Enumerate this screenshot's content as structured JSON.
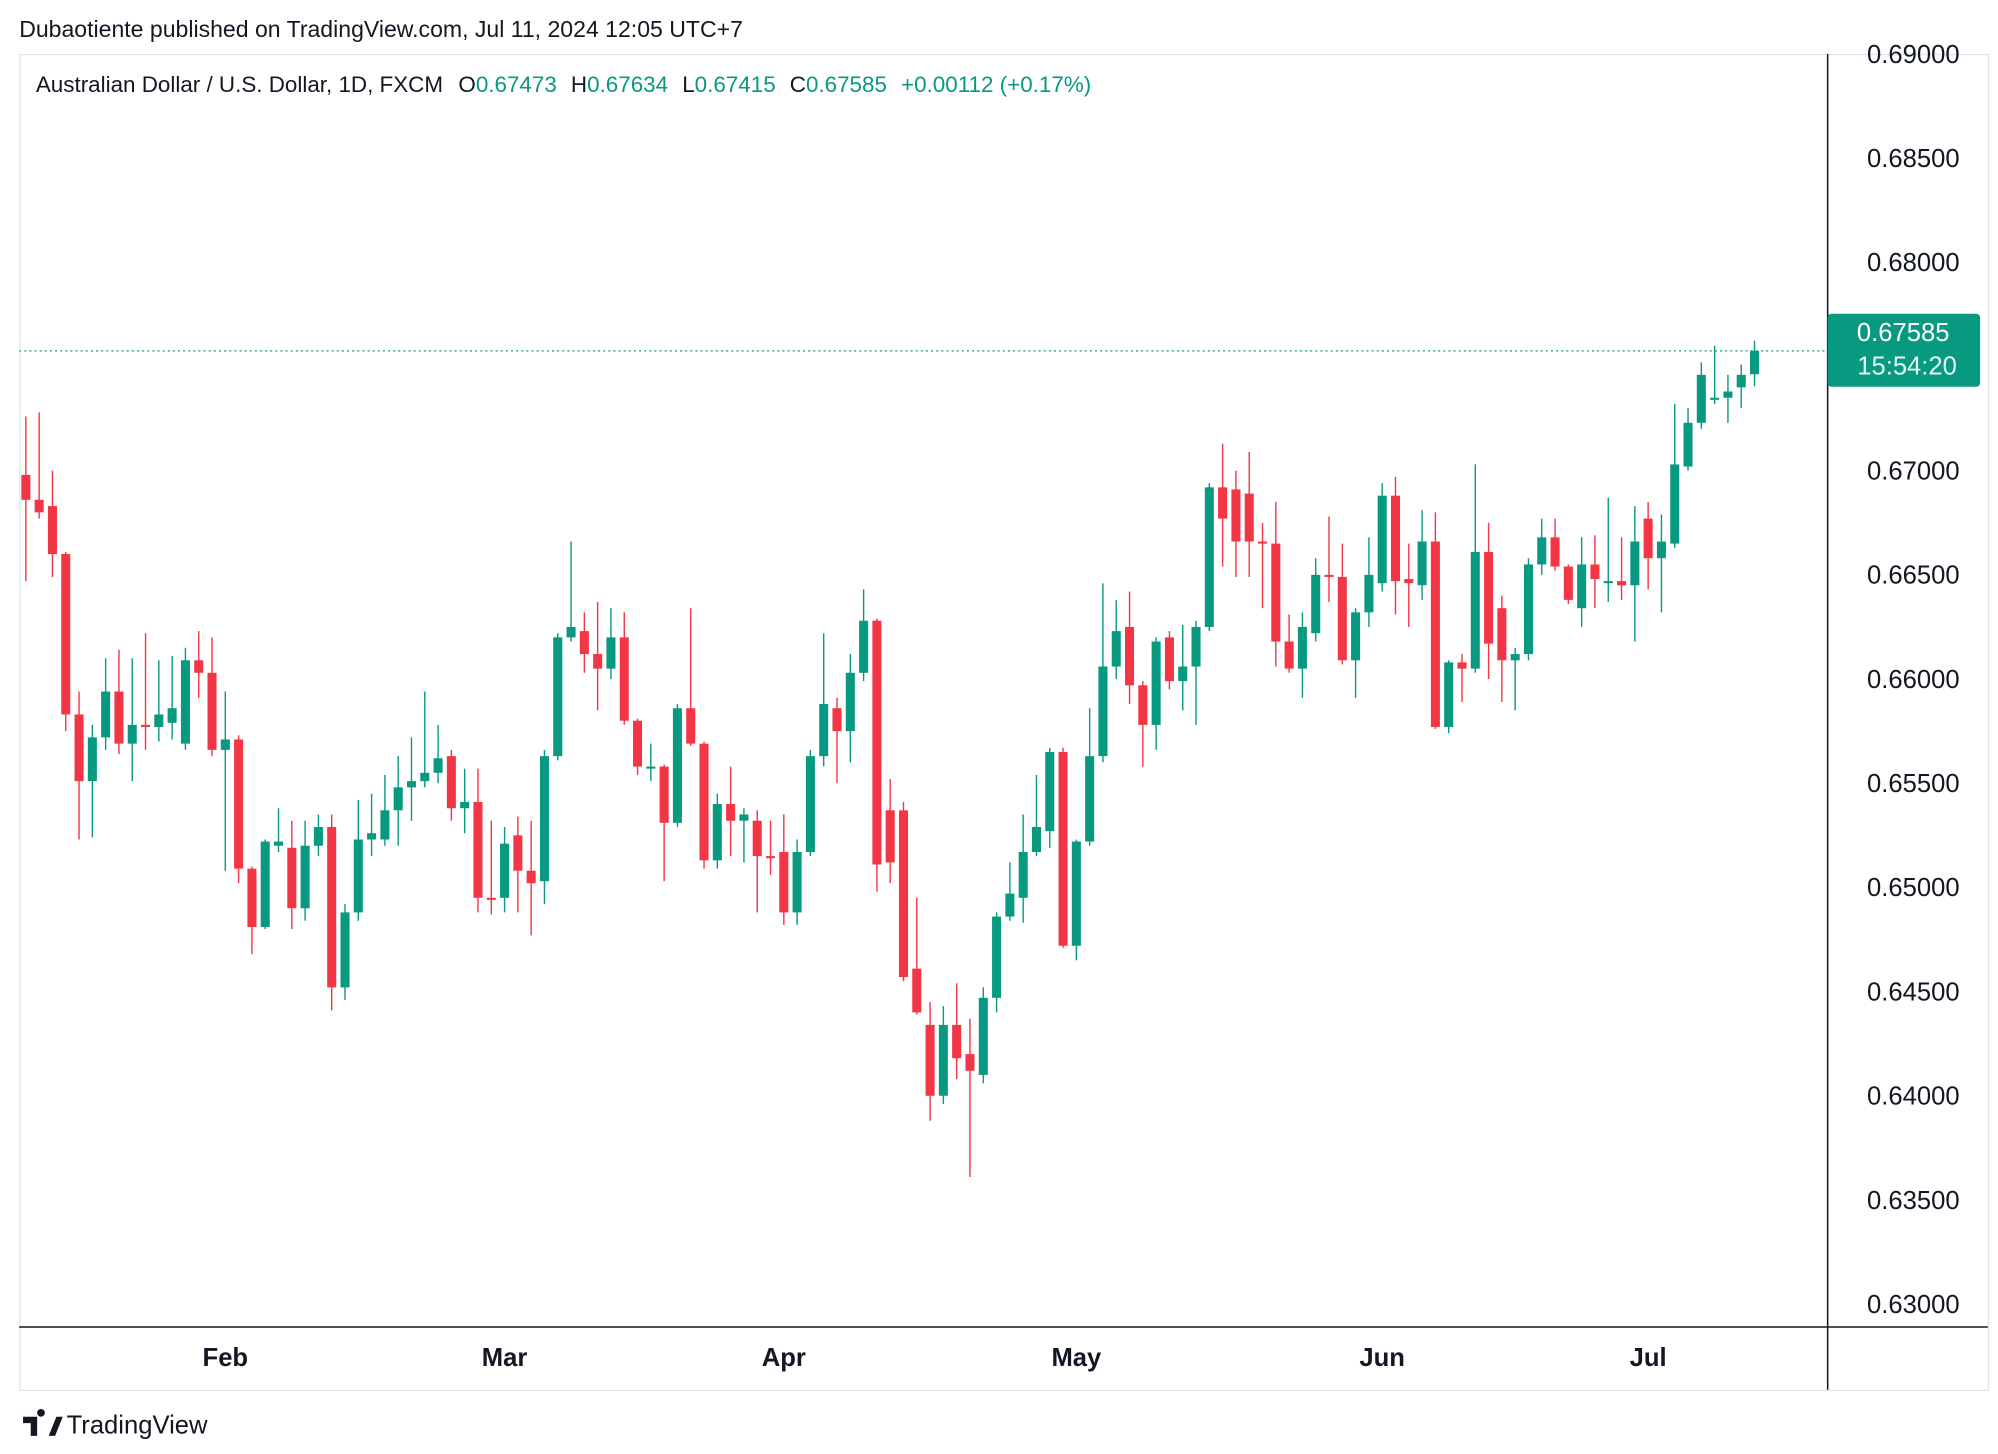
{
  "header": {
    "published": "Dubaotiente published on TradingView.com, Jul 11, 2024 12:05 UTC+7",
    "brand": "TradingView"
  },
  "chart_data": {
    "type": "candlestick",
    "title": "Australian Dollar / U.S. Dollar, 1D, FXCM",
    "ohlc_labels": [
      "O",
      "H",
      "L",
      "C"
    ],
    "change": "+0.00112 (+0.17%)",
    "countdown": "15:54:20",
    "up_color": "#089981",
    "down_color": "#f23645",
    "last_price_line": true,
    "xlim": [
      -0.5,
      135.5
    ],
    "xticks": [
      {
        "value": 15,
        "label": "Feb"
      },
      {
        "value": 36,
        "label": "Mar"
      },
      {
        "value": 57,
        "label": "Apr"
      },
      {
        "value": 79,
        "label": "May"
      },
      {
        "value": 102,
        "label": "Jun"
      },
      {
        "value": 122,
        "label": "Jul"
      }
    ],
    "ylim": [
      0.629,
      0.6901
    ],
    "yticks": [
      {
        "value": 0.63,
        "label": "0.63000"
      },
      {
        "value": 0.635,
        "label": "0.63500"
      },
      {
        "value": 0.64,
        "label": "0.64000"
      },
      {
        "value": 0.645,
        "label": "0.64500"
      },
      {
        "value": 0.65,
        "label": "0.65000"
      },
      {
        "value": 0.655,
        "label": "0.65500"
      },
      {
        "value": 0.66,
        "label": "0.66000"
      },
      {
        "value": 0.665,
        "label": "0.66500"
      },
      {
        "value": 0.67,
        "label": "0.67000"
      },
      {
        "value": 0.675,
        "label": "0.67500"
      },
      {
        "value": 0.68,
        "label": "0.68000"
      },
      {
        "value": 0.685,
        "label": "0.68500"
      },
      {
        "value": 0.69,
        "label": "0.69000"
      }
    ],
    "open": [
      0.6699,
      0.6687,
      0.6684,
      0.6661,
      0.6584,
      0.6552,
      0.6573,
      0.6595,
      0.657,
      0.6579,
      0.6578,
      0.658,
      0.657,
      0.661,
      0.6604,
      0.6567,
      0.6572,
      0.651,
      0.6482,
      0.6521,
      0.652,
      0.6491,
      0.6521,
      0.653,
      0.6453,
      0.6489,
      0.6524,
      0.6524,
      0.6538,
      0.6549,
      0.6552,
      0.6556,
      0.6564,
      0.6539,
      0.6542,
      0.6496,
      0.6496,
      0.6526,
      0.6509,
      0.6504,
      0.6564,
      0.6621,
      0.6624,
      0.6613,
      0.6606,
      0.6621,
      0.6581,
      0.6558,
      0.6559,
      0.6532,
      0.6587,
      0.657,
      0.6514,
      0.6541,
      0.6533,
      0.6533,
      0.6516,
      0.6518,
      0.6489,
      0.6518,
      0.6564,
      0.6587,
      0.6576,
      0.6604,
      0.6629,
      0.6538,
      0.6538,
      0.6462,
      0.6435,
      0.6401,
      0.6435,
      0.6421,
      0.6411,
      0.6448,
      0.6487,
      0.6496,
      0.6518,
      0.6528,
      0.6566,
      0.6473,
      0.6523,
      0.6564,
      0.6607,
      0.6626,
      0.6598,
      0.6579,
      0.6621,
      0.66,
      0.6607,
      0.6626,
      0.6693,
      0.6692,
      0.669,
      0.6667,
      0.6666,
      0.6619,
      0.6606,
      0.6623,
      0.6651,
      0.665,
      0.661,
      0.6633,
      0.6647,
      0.6689,
      0.6649,
      0.6646,
      0.6667,
      0.6578,
      0.6609,
      0.6606,
      0.6662,
      0.6635,
      0.661,
      0.6613,
      0.6656,
      0.6669,
      0.6655,
      0.6635,
      0.6656,
      0.6647,
      0.6648,
      0.6646,
      0.6678,
      0.6659,
      0.6666,
      0.6703,
      0.6724,
      0.6735,
      0.6736,
      0.6741,
      0.67473
    ],
    "high": [
      0.6727,
      0.6729,
      0.6701,
      0.6662,
      0.6595,
      0.6579,
      0.6611,
      0.6615,
      0.6611,
      0.6623,
      0.661,
      0.6612,
      0.6616,
      0.6624,
      0.6621,
      0.6595,
      0.6574,
      0.6511,
      0.6524,
      0.6539,
      0.6533,
      0.6533,
      0.6536,
      0.6536,
      0.6493,
      0.6543,
      0.6546,
      0.6555,
      0.6564,
      0.6573,
      0.6595,
      0.6579,
      0.6567,
      0.6558,
      0.6558,
      0.6533,
      0.653,
      0.6535,
      0.6533,
      0.6567,
      0.6623,
      0.6667,
      0.6633,
      0.6638,
      0.6635,
      0.6633,
      0.6582,
      0.657,
      0.656,
      0.6589,
      0.6635,
      0.6571,
      0.6546,
      0.6559,
      0.6539,
      0.6538,
      0.6533,
      0.6536,
      0.6524,
      0.6567,
      0.6623,
      0.6592,
      0.6613,
      0.6644,
      0.663,
      0.6553,
      0.6542,
      0.6496,
      0.6446,
      0.6444,
      0.6455,
      0.6438,
      0.6453,
      0.6489,
      0.6513,
      0.6536,
      0.6555,
      0.6568,
      0.6568,
      0.6524,
      0.6587,
      0.6647,
      0.6639,
      0.6643,
      0.66,
      0.6621,
      0.6624,
      0.6627,
      0.6629,
      0.6695,
      0.6714,
      0.6701,
      0.671,
      0.6676,
      0.6686,
      0.6632,
      0.6633,
      0.6659,
      0.6679,
      0.6666,
      0.6635,
      0.6669,
      0.6695,
      0.6698,
      0.6666,
      0.6682,
      0.6681,
      0.661,
      0.6613,
      0.6704,
      0.6676,
      0.6641,
      0.6616,
      0.6659,
      0.6678,
      0.6678,
      0.6656,
      0.6669,
      0.667,
      0.6688,
      0.6669,
      0.6684,
      0.6686,
      0.668,
      0.6733,
      0.6731,
      0.6753,
      0.6761,
      0.6747,
      0.6752,
      0.67634
    ],
    "low": [
      0.6648,
      0.6678,
      0.665,
      0.6576,
      0.6524,
      0.6525,
      0.6567,
      0.6565,
      0.6552,
      0.6567,
      0.6571,
      0.6572,
      0.6567,
      0.6592,
      0.6564,
      0.6509,
      0.6503,
      0.6469,
      0.6481,
      0.6518,
      0.6481,
      0.6485,
      0.6516,
      0.6442,
      0.6447,
      0.6485,
      0.6516,
      0.6521,
      0.6521,
      0.6533,
      0.6549,
      0.6551,
      0.6533,
      0.6527,
      0.6489,
      0.6488,
      0.6489,
      0.6489,
      0.6478,
      0.6493,
      0.6562,
      0.6619,
      0.6604,
      0.6586,
      0.6601,
      0.6579,
      0.6555,
      0.6552,
      0.6504,
      0.653,
      0.6569,
      0.651,
      0.651,
      0.6516,
      0.6513,
      0.6489,
      0.6507,
      0.6483,
      0.6483,
      0.6516,
      0.6559,
      0.6551,
      0.6561,
      0.66,
      0.6499,
      0.6503,
      0.6456,
      0.644,
      0.6389,
      0.6397,
      0.6409,
      0.6362,
      0.6407,
      0.6441,
      0.6485,
      0.6484,
      0.6516,
      0.652,
      0.6472,
      0.6466,
      0.6521,
      0.6561,
      0.6601,
      0.6589,
      0.6559,
      0.6567,
      0.6596,
      0.6586,
      0.6579,
      0.6624,
      0.6655,
      0.665,
      0.665,
      0.6635,
      0.6607,
      0.6604,
      0.6592,
      0.6619,
      0.6638,
      0.6608,
      0.6592,
      0.6626,
      0.6643,
      0.6632,
      0.6626,
      0.6639,
      0.6577,
      0.6575,
      0.659,
      0.6604,
      0.6601,
      0.659,
      0.6586,
      0.661,
      0.6651,
      0.6653,
      0.6637,
      0.6626,
      0.6635,
      0.6638,
      0.6639,
      0.6619,
      0.6644,
      0.6633,
      0.6664,
      0.6701,
      0.6721,
      0.6733,
      0.6724,
      0.6731,
      0.67415
    ],
    "close": [
      0.6687,
      0.6681,
      0.6661,
      0.6584,
      0.6552,
      0.6573,
      0.6595,
      0.657,
      0.6579,
      0.6578,
      0.6584,
      0.6587,
      0.661,
      0.6604,
      0.6567,
      0.6572,
      0.651,
      0.6482,
      0.6523,
      0.6523,
      0.6491,
      0.6521,
      0.653,
      0.6453,
      0.6489,
      0.6524,
      0.6527,
      0.6538,
      0.6549,
      0.6552,
      0.6556,
      0.6563,
      0.6539,
      0.6542,
      0.6496,
      0.6495,
      0.6522,
      0.6509,
      0.6503,
      0.6564,
      0.6621,
      0.6626,
      0.6613,
      0.6606,
      0.6621,
      0.6581,
      0.6559,
      0.6559,
      0.6532,
      0.6587,
      0.657,
      0.6514,
      0.6541,
      0.6533,
      0.6536,
      0.6516,
      0.6515,
      0.6489,
      0.6518,
      0.6564,
      0.6589,
      0.6576,
      0.6604,
      0.6629,
      0.6512,
      0.6513,
      0.6458,
      0.6441,
      0.6401,
      0.6435,
      0.6419,
      0.6413,
      0.6448,
      0.6487,
      0.6498,
      0.6518,
      0.653,
      0.6566,
      0.6473,
      0.6523,
      0.6564,
      0.6607,
      0.6624,
      0.6598,
      0.6579,
      0.6619,
      0.66,
      0.6607,
      0.6626,
      0.6693,
      0.6678,
      0.6667,
      0.6667,
      0.6666,
      0.6619,
      0.6606,
      0.6626,
      0.6651,
      0.665,
      0.661,
      0.6633,
      0.6651,
      0.6689,
      0.6648,
      0.6647,
      0.6667,
      0.6578,
      0.6609,
      0.6606,
      0.6662,
      0.6618,
      0.661,
      0.6613,
      0.6656,
      0.6669,
      0.6655,
      0.6639,
      0.6656,
      0.6649,
      0.6648,
      0.6646,
      0.6667,
      0.6659,
      0.6667,
      0.6704,
      0.6724,
      0.6747,
      0.6736,
      0.6739,
      0.6747,
      0.67585
    ]
  }
}
